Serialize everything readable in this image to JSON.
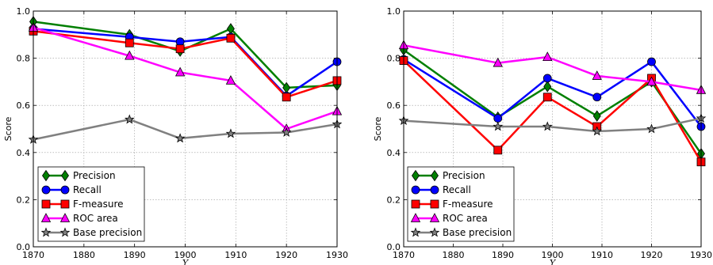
{
  "chart_data": [
    {
      "type": "line",
      "xlabel": "Y",
      "ylabel": "Score",
      "xlim": [
        1870,
        1930
      ],
      "ylim": [
        0.0,
        1.0
      ],
      "xticks": [
        "1870",
        "1880",
        "1890",
        "1900",
        "1910",
        "1920",
        "1930"
      ],
      "yticks": [
        "0.0",
        "0.2",
        "0.4",
        "0.6",
        "0.8",
        "1.0"
      ],
      "grid": true,
      "legend_position": "bottom-left",
      "x": [
        1870,
        1889,
        1899,
        1909,
        1920,
        1930
      ],
      "series": [
        {
          "name": "Precision",
          "color": "#007f00",
          "marker": "diamond",
          "values": [
            0.955,
            0.9,
            0.83,
            0.925,
            0.675,
            0.685
          ]
        },
        {
          "name": "Recall",
          "color": "#0000ff",
          "marker": "circle",
          "values": [
            0.925,
            0.89,
            0.87,
            0.89,
            0.64,
            0.785
          ]
        },
        {
          "name": "F-measure",
          "color": "#ff0000",
          "marker": "square",
          "values": [
            0.915,
            0.865,
            0.84,
            0.885,
            0.635,
            0.705
          ]
        },
        {
          "name": "ROC area",
          "color": "#ff00ff",
          "marker": "triangle",
          "values": [
            0.93,
            0.81,
            0.74,
            0.705,
            0.5,
            0.575
          ]
        },
        {
          "name": "Base precision",
          "color": "#808080",
          "marker": "star",
          "values": [
            0.455,
            0.54,
            0.46,
            0.48,
            0.485,
            0.52
          ]
        }
      ]
    },
    {
      "type": "line",
      "xlabel": "Y",
      "ylabel": "Score",
      "xlim": [
        1870,
        1930
      ],
      "ylim": [
        0.0,
        1.0
      ],
      "xticks": [
        "1870",
        "1880",
        "1890",
        "1900",
        "1910",
        "1920",
        "1930"
      ],
      "yticks": [
        "0.0",
        "0.2",
        "0.4",
        "0.6",
        "0.8",
        "1.0"
      ],
      "grid": true,
      "legend_position": "bottom-left",
      "x": [
        1870,
        1889,
        1899,
        1909,
        1920,
        1930
      ],
      "series": [
        {
          "name": "Precision",
          "color": "#007f00",
          "marker": "diamond",
          "values": [
            0.835,
            0.55,
            0.68,
            0.555,
            0.7,
            0.395
          ]
        },
        {
          "name": "Recall",
          "color": "#0000ff",
          "marker": "circle",
          "values": [
            0.795,
            0.545,
            0.715,
            0.635,
            0.785,
            0.51
          ]
        },
        {
          "name": "F-measure",
          "color": "#ff0000",
          "marker": "square",
          "values": [
            0.79,
            0.41,
            0.635,
            0.51,
            0.715,
            0.36
          ]
        },
        {
          "name": "ROC area",
          "color": "#ff00ff",
          "marker": "triangle",
          "values": [
            0.855,
            0.78,
            0.805,
            0.725,
            0.7,
            0.665
          ]
        },
        {
          "name": "Base precision",
          "color": "#808080",
          "marker": "star",
          "values": [
            0.535,
            0.51,
            0.51,
            0.49,
            0.5,
            0.545
          ]
        }
      ]
    }
  ]
}
